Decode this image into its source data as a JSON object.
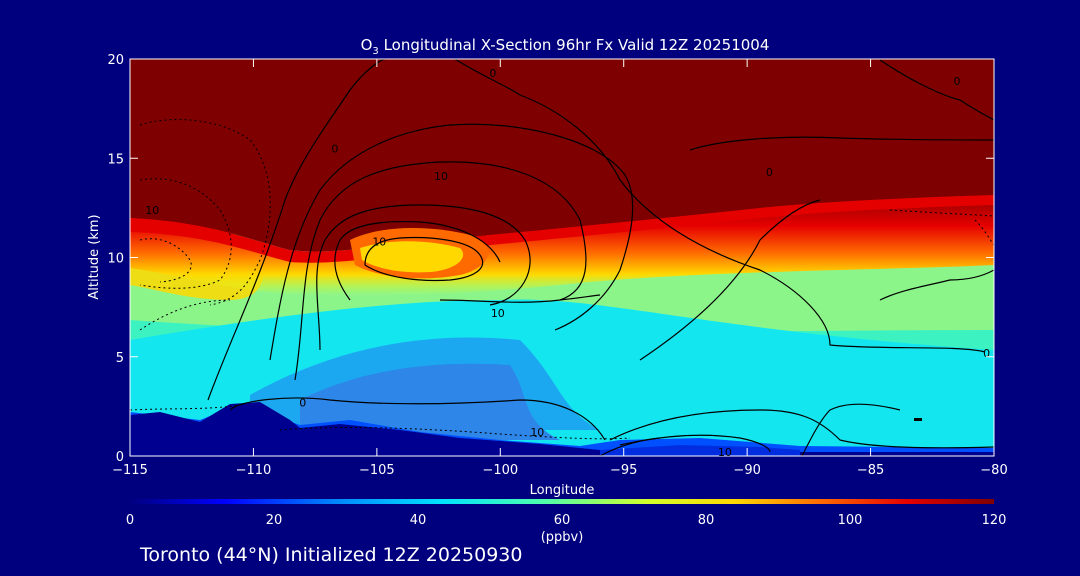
{
  "chart_data": {
    "type": "heatmap",
    "title_main": "O",
    "title_sub": "3",
    "title_rest": " Longitudinal X-Section 96hr  Fx Valid 12Z 20251004",
    "xlabel": "Longitude",
    "ylabel": "Altitude (km)",
    "xlim": [
      -115,
      -80
    ],
    "ylim": [
      0,
      20
    ],
    "x_ticks": [
      -115,
      -110,
      -105,
      -100,
      -95,
      -90,
      -85,
      -80
    ],
    "x_tick_labels": [
      "−115",
      "−110",
      "−105",
      "−100",
      "−95",
      "−90",
      "−85",
      "−80"
    ],
    "y_ticks": [
      0,
      5,
      10,
      15,
      20
    ],
    "y_tick_labels": [
      "0",
      "5",
      "10",
      "15",
      "20"
    ],
    "colorbar": {
      "min": 0,
      "max": 120,
      "ticks": [
        0,
        20,
        40,
        60,
        80,
        100,
        120
      ],
      "tick_labels": [
        "0",
        "20",
        "40",
        "60",
        "80",
        "100",
        "120"
      ],
      "unit": "(ppbv)",
      "colors": [
        "#00007f",
        "#0000ff",
        "#0088ff",
        "#00e4ff",
        "#50ffaa",
        "#d4ff2a",
        "#ffd800",
        "#ff6a00",
        "#e50000",
        "#7f0000"
      ]
    },
    "contour_labels": [
      {
        "text": "0",
        "x": -100.3,
        "y": 19.3
      },
      {
        "text": "0",
        "x": -81.5,
        "y": 18.9
      },
      {
        "text": "0",
        "x": -106.7,
        "y": 15.5
      },
      {
        "text": "10",
        "x": -102.4,
        "y": 14.1
      },
      {
        "text": "10",
        "x": -114.1,
        "y": 12.4
      },
      {
        "text": "0",
        "x": -89.1,
        "y": 14.3
      },
      {
        "text": "10",
        "x": -104.9,
        "y": 10.8
      },
      {
        "text": "10",
        "x": -100.1,
        "y": 7.2
      },
      {
        "text": "0",
        "x": -80.3,
        "y": 5.2
      },
      {
        "text": "0",
        "x": -108.0,
        "y": 2.7
      },
      {
        "text": "10",
        "x": -98.5,
        "y": 1.2
      },
      {
        "text": "10",
        "x": -90.9,
        "y": 0.2
      }
    ],
    "field_description": "Ozone mixing ratio (ppbv) vs longitude and altitude"
  },
  "footer": {
    "location_text": "Toronto (44°N) Initialized 12Z 20250930"
  }
}
